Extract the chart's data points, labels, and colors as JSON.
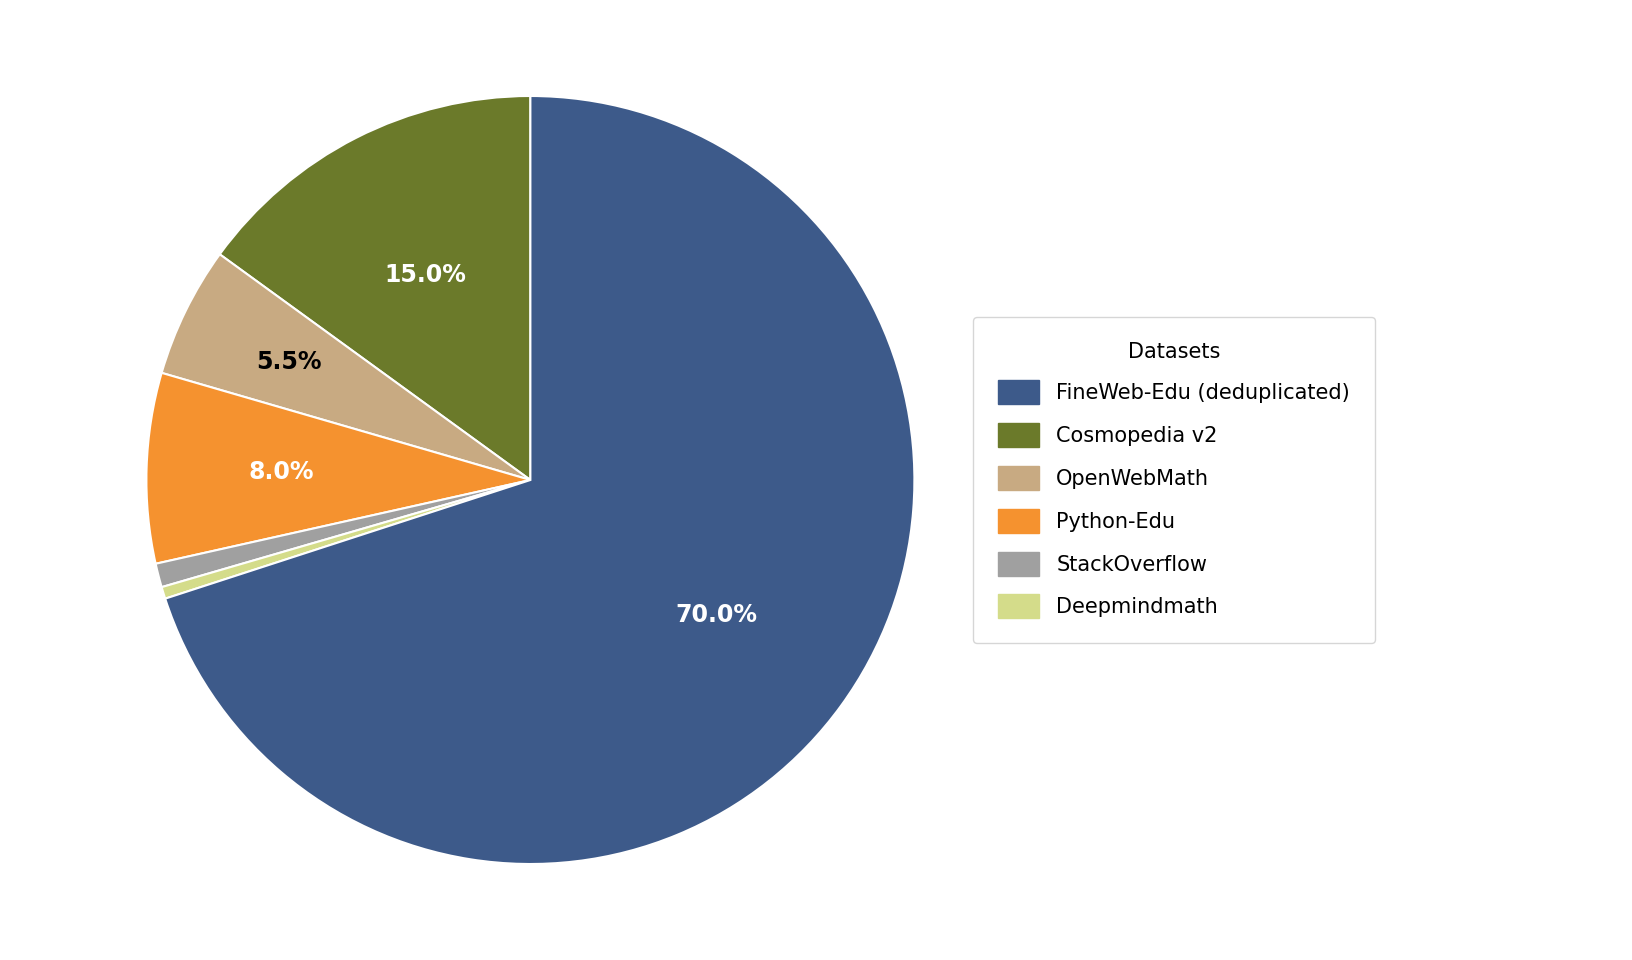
{
  "labels": [
    "FineWeb-Edu (deduplicated)",
    "Cosmopedia v2",
    "OpenWebMath",
    "Python-Edu",
    "StackOverflow",
    "Deepmindmath"
  ],
  "values": [
    70.0,
    15.0,
    5.5,
    8.0,
    1.0,
    0.5
  ],
  "colors": [
    "#3d5a8a",
    "#6b7a2a",
    "#c8aa82",
    "#f5922f",
    "#a0a0a0",
    "#d4dc8a"
  ],
  "pct_labels": [
    "70.0%",
    "15.0%",
    "5.5%",
    "8.0%",
    "",
    ""
  ],
  "pct_colors": [
    "white",
    "white",
    "black",
    "white",
    "",
    ""
  ],
  "legend_title": "Datasets",
  "background_color": "#ffffff",
  "startangle": 90,
  "label_fontsize": 17,
  "legend_fontsize": 15,
  "legend_title_fontsize": 15
}
